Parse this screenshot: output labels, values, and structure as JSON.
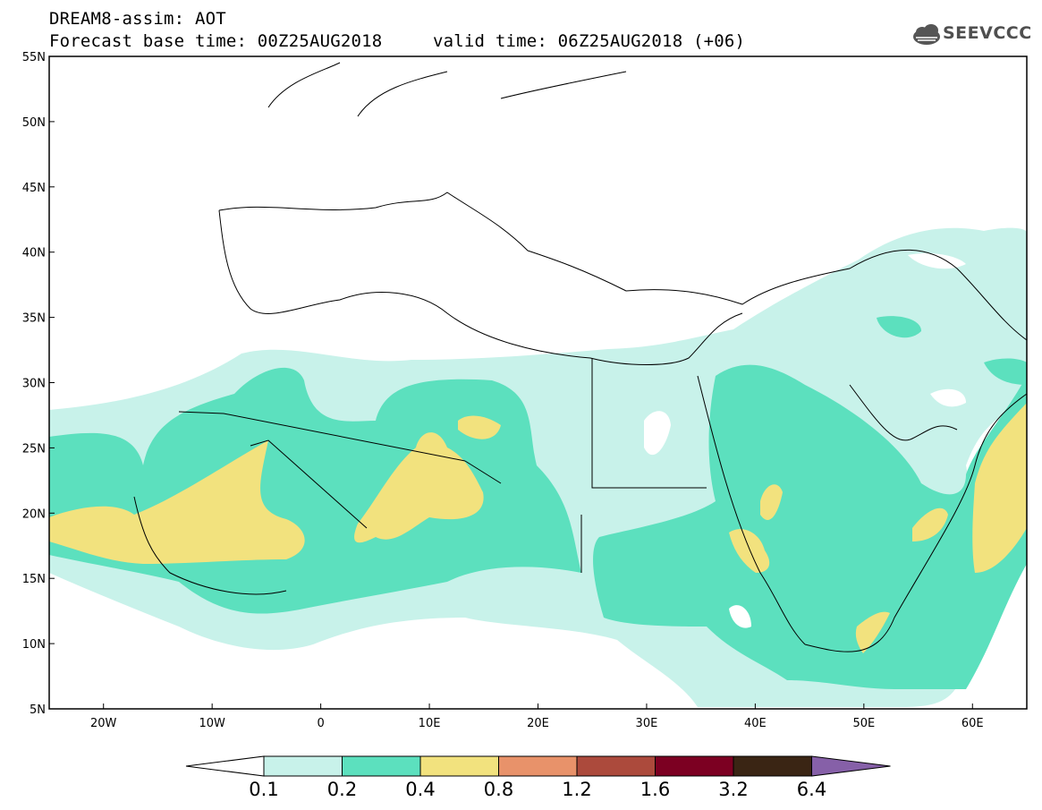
{
  "header": {
    "title": "DREAM8-assim: AOT",
    "base_time": "Forecast base time: 00Z25AUG2018",
    "valid_time": "valid time: 06Z25AUG2018 (+06)"
  },
  "logo": {
    "text": "SEEVCCC",
    "icon": "cloud-icon"
  },
  "map": {
    "lon_range": [
      -25,
      65
    ],
    "lat_range": [
      5,
      55
    ],
    "lat_labels": [
      "55N",
      "50N",
      "45N",
      "40N",
      "35N",
      "30N",
      "25N",
      "20N",
      "15N",
      "10N",
      "5N"
    ],
    "lon_labels": [
      "20W",
      "10W",
      "0",
      "10E",
      "20E",
      "30E",
      "40E",
      "50E",
      "60E"
    ],
    "field": "AOT"
  },
  "colorbar": {
    "levels": [
      "0.1",
      "0.2",
      "0.4",
      "0.8",
      "1.2",
      "1.6",
      "3.2",
      "6.4"
    ],
    "colors": [
      "#ffffff",
      "#c8f2ea",
      "#5ce0be",
      "#f2e27e",
      "#e8926a",
      "#ac4a3c",
      "#7c0022",
      "#3a2514",
      "#8660a8"
    ]
  }
}
